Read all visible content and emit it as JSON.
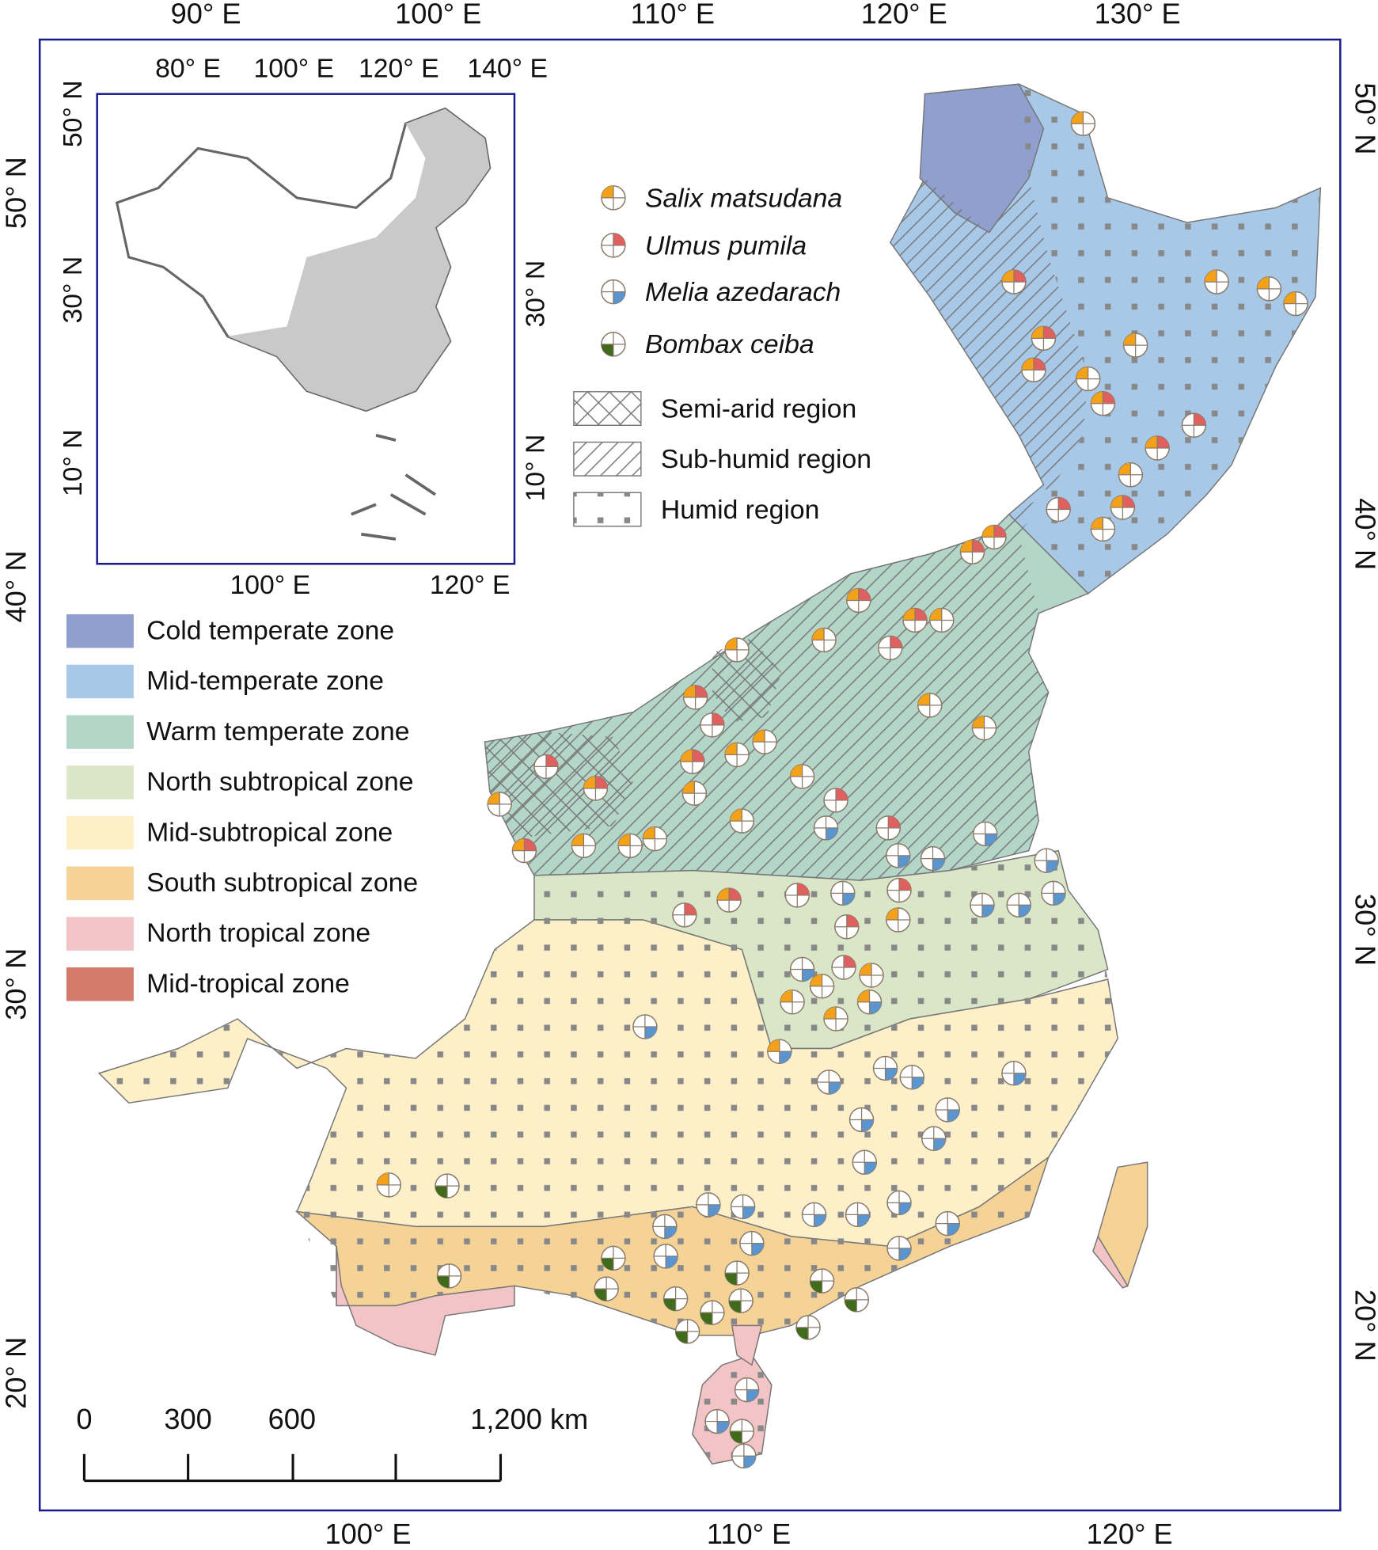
{
  "map": {
    "axes": {
      "top": [
        "90° E",
        "100° E",
        "110° E",
        "120° E",
        "130° E"
      ],
      "bottom": [
        "100° E",
        "110° E",
        "120° E"
      ],
      "left": [
        "50° N",
        "40° N",
        "30° N",
        "20° N"
      ],
      "right": [
        "50° N",
        "40° N",
        "30° N",
        "20° N"
      ]
    },
    "inset": {
      "top": [
        "80° E",
        "100° E",
        "120° E",
        "140° E"
      ],
      "bottom": [
        "100° E",
        "120° E"
      ],
      "left": [
        "50° N",
        "30° N",
        "10° N"
      ],
      "right": [
        "30° N",
        "10° N"
      ]
    },
    "species_legend": [
      {
        "name": "Salix matsudana",
        "color": "#f4a11a"
      },
      {
        "name": "Ulmus pumila",
        "color": "#e0605f"
      },
      {
        "name": "Melia azedarach",
        "color": "#5b95d0"
      },
      {
        "name": "Bombax ceiba",
        "color": "#3f6b1a"
      }
    ],
    "region_legend": [
      "Semi-arid region",
      "Sub-humid region",
      "Humid region"
    ],
    "zone_legend": [
      {
        "name": "Cold temperate zone",
        "color": "#8f9fce"
      },
      {
        "name": "Mid-temperate zone",
        "color": "#a8c8e8"
      },
      {
        "name": "Warm temperate zone",
        "color": "#b3d6c9"
      },
      {
        "name": "North subtropical zone",
        "color": "#d9e6c7"
      },
      {
        "name": "Mid-subtropical zone",
        "color": "#fdf0c8"
      },
      {
        "name": "South subtropical zone",
        "color": "#f5d397"
      },
      {
        "name": "North tropical zone",
        "color": "#f2c4c6"
      },
      {
        "name": "Mid-tropical zone",
        "color": "#d47a6a"
      }
    ],
    "scale_bar": {
      "labels": [
        "0",
        "300",
        "600",
        "1,200 km"
      ]
    }
  }
}
